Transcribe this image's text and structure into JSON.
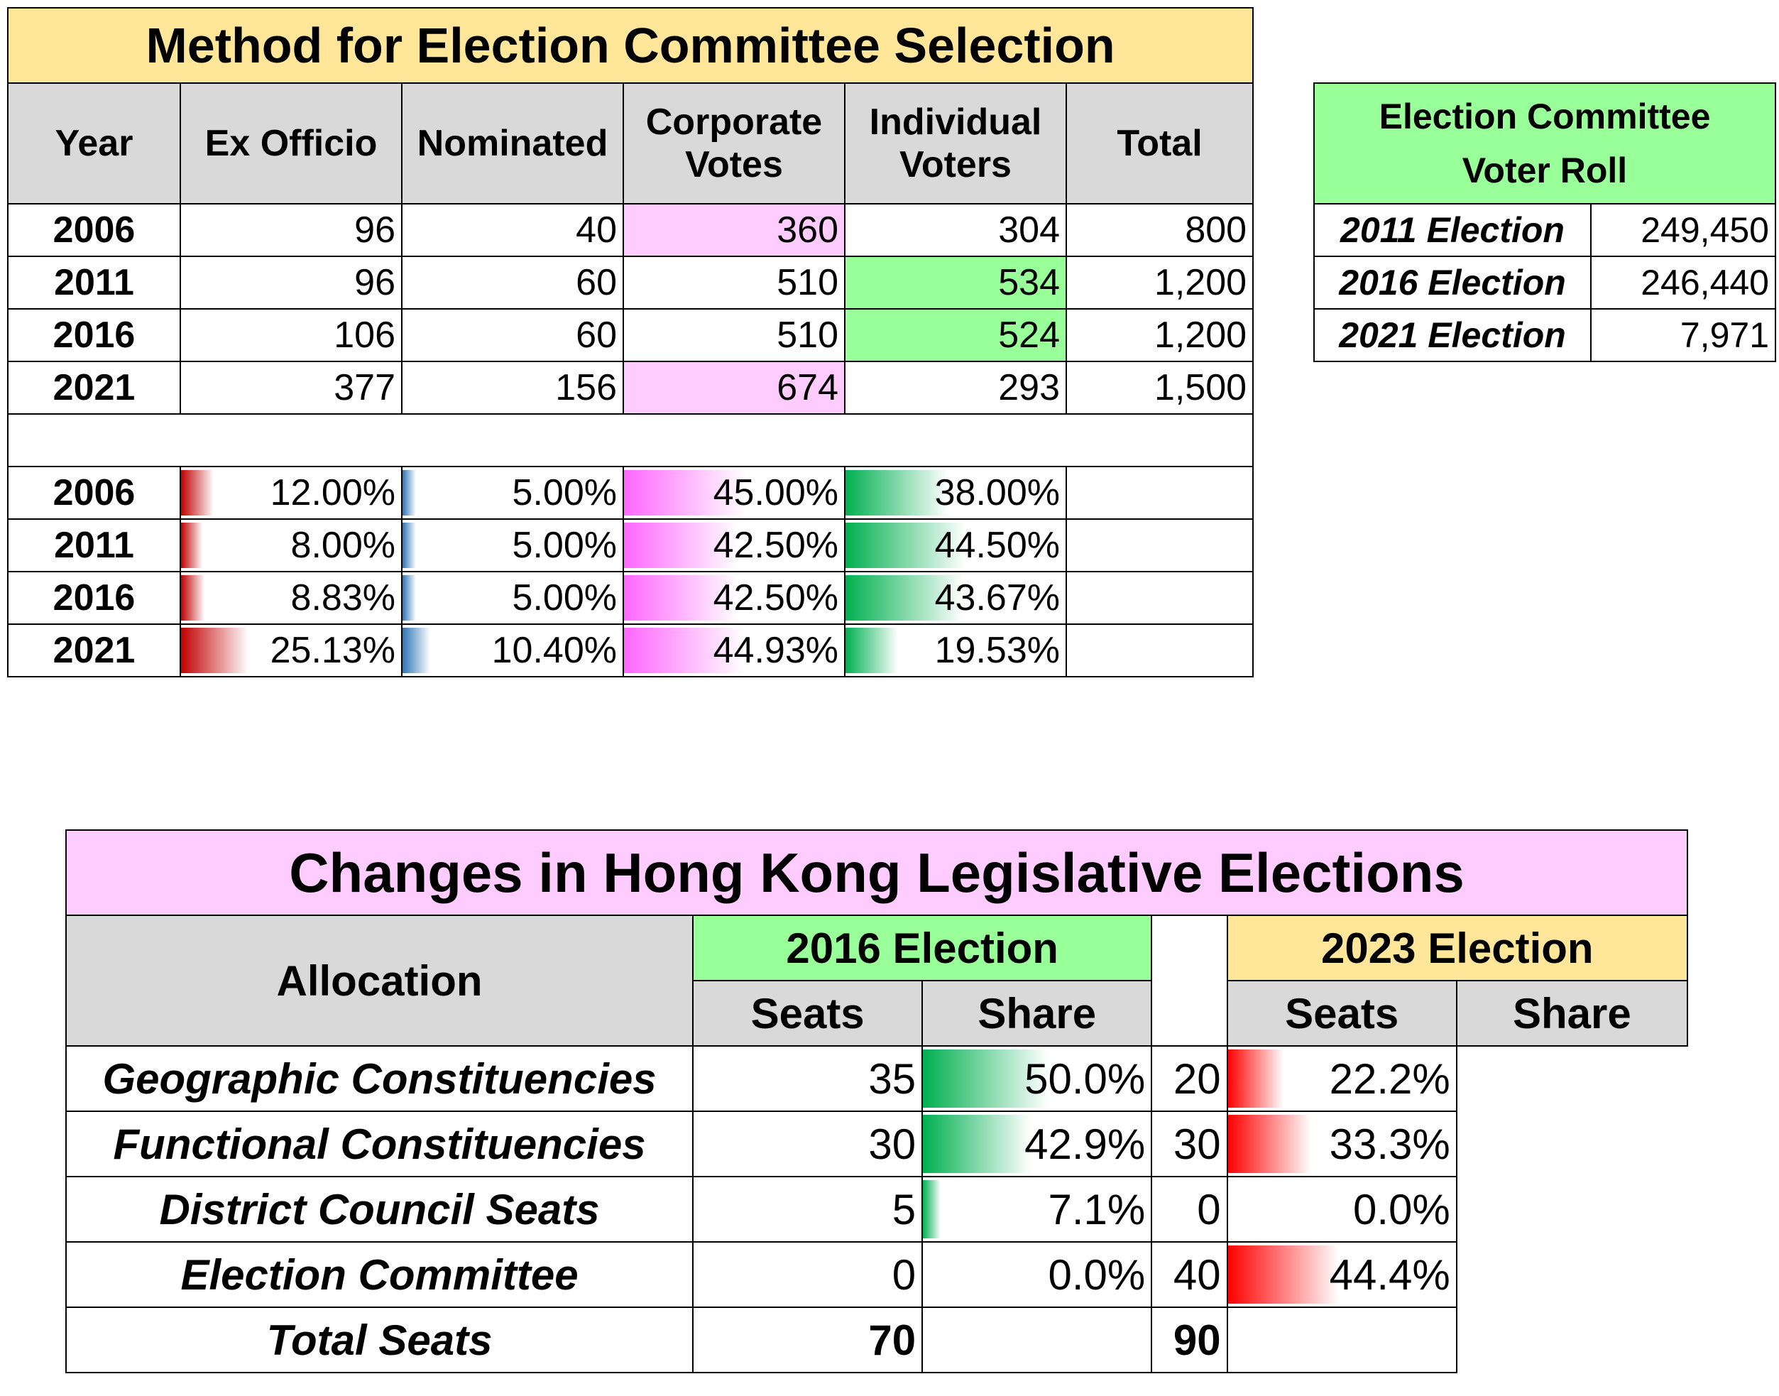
{
  "committee": {
    "title": "Method for Election Committee Selection",
    "headers": [
      "Year",
      "Ex Officio",
      "Nominated",
      "Corporate Votes",
      "Individual Voters",
      "Total"
    ],
    "rows": [
      {
        "year": "2006",
        "ex_officio": "96",
        "nominated": "40",
        "corporate": "360",
        "individual": "304",
        "total": "800"
      },
      {
        "year": "2011",
        "ex_officio": "96",
        "nominated": "60",
        "corporate": "510",
        "individual": "534",
        "total": "1,200"
      },
      {
        "year": "2016",
        "ex_officio": "106",
        "nominated": "60",
        "corporate": "510",
        "individual": "524",
        "total": "1,200"
      },
      {
        "year": "2021",
        "ex_officio": "377",
        "nominated": "156",
        "corporate": "674",
        "individual": "293",
        "total": "1,500"
      }
    ],
    "pct_rows": [
      {
        "year": "2006",
        "ex_officio": "12.00%",
        "nominated": "5.00%",
        "corporate": "45.00%",
        "individual": "38.00%",
        "ex_officio_frac": 0.12,
        "nominated_frac": 0.05,
        "corporate_frac": 0.45,
        "individual_frac": 0.38
      },
      {
        "year": "2011",
        "ex_officio": "8.00%",
        "nominated": "5.00%",
        "corporate": "42.50%",
        "individual": "44.50%",
        "ex_officio_frac": 0.08,
        "nominated_frac": 0.05,
        "corporate_frac": 0.425,
        "individual_frac": 0.445
      },
      {
        "year": "2016",
        "ex_officio": "8.83%",
        "nominated": "5.00%",
        "corporate": "42.50%",
        "individual": "43.67%",
        "ex_officio_frac": 0.0883,
        "nominated_frac": 0.05,
        "corporate_frac": 0.425,
        "individual_frac": 0.4367
      },
      {
        "year": "2021",
        "ex_officio": "25.13%",
        "nominated": "10.40%",
        "corporate": "44.93%",
        "individual": "19.53%",
        "ex_officio_frac": 0.2513,
        "nominated_frac": 0.104,
        "corporate_frac": 0.4493,
        "individual_frac": 0.1953
      }
    ]
  },
  "voter_roll": {
    "title_line1": "Election Committee",
    "title_line2": "Voter Roll",
    "rows": [
      {
        "label": "2011 Election",
        "value": "249,450"
      },
      {
        "label": "2016 Election",
        "value": "246,440"
      },
      {
        "label": "2021 Election",
        "value": "7,971"
      }
    ]
  },
  "legco": {
    "title": "Changes in Hong Kong Legislative Elections",
    "allocation_header": "Allocation",
    "election_a": "2016 Election",
    "election_b": "2023 Election",
    "seats_label": "Seats",
    "share_label": "Share",
    "rows": [
      {
        "label": "Geographic Constituencies",
        "seats_a": "35",
        "share_a": "50.0%",
        "seats_b": "20",
        "share_b": "22.2%",
        "frac_a": 0.5,
        "frac_b": 0.222
      },
      {
        "label": "Functional Constituencies",
        "seats_a": "30",
        "share_a": "42.9%",
        "seats_b": "30",
        "share_b": "33.3%",
        "frac_a": 0.429,
        "frac_b": 0.333
      },
      {
        "label": "District Council Seats",
        "seats_a": "5",
        "share_a": "7.1%",
        "seats_b": "0",
        "share_b": "0.0%",
        "frac_a": 0.071,
        "frac_b": 0.0
      },
      {
        "label": "Election Committee",
        "seats_a": "0",
        "share_a": "0.0%",
        "seats_b": "40",
        "share_b": "44.4%",
        "frac_a": 0.0,
        "frac_b": 0.444
      }
    ],
    "total_label": "Total Seats",
    "total_a": "70",
    "total_b": "90"
  },
  "colors": {
    "title_yellow": "#ffe699",
    "title_green": "#99ff99",
    "title_pink": "#ffccff",
    "header_gray": "#d9d9d9"
  }
}
